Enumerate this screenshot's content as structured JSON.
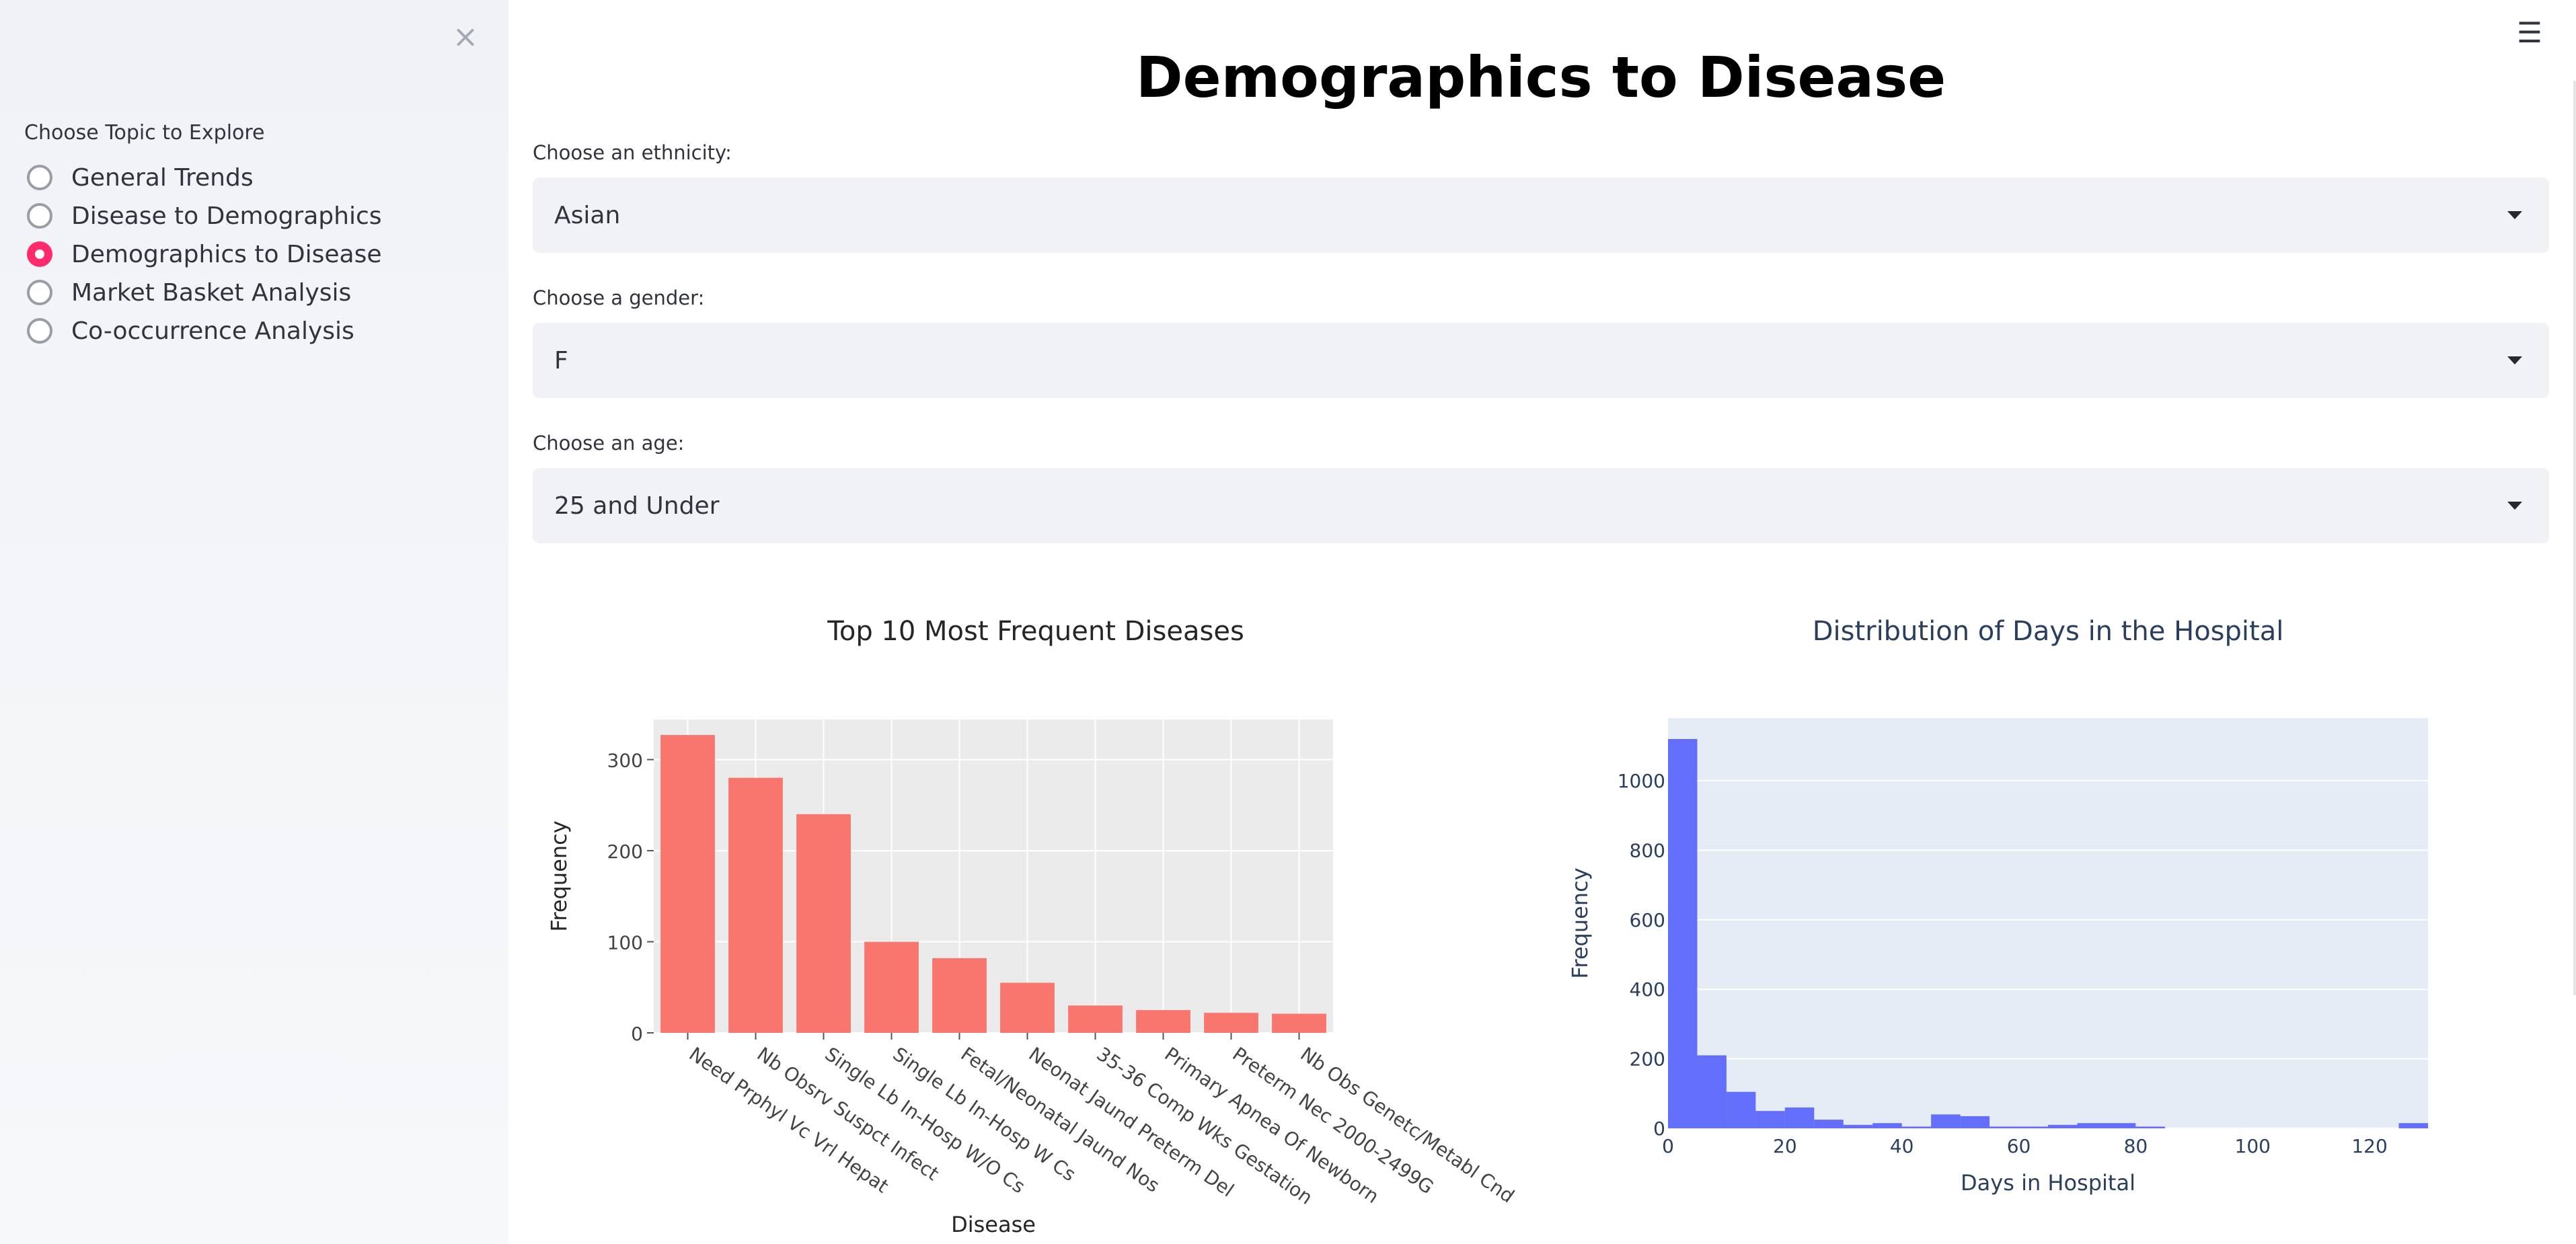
{
  "sidebar": {
    "close_icon": "close-icon",
    "topic_label": "Choose Topic to Explore",
    "options": [
      {
        "label": "General Trends",
        "selected": false
      },
      {
        "label": "Disease to Demographics",
        "selected": false
      },
      {
        "label": "Demographics to Disease",
        "selected": true
      },
      {
        "label": "Market Basket Analysis",
        "selected": false
      },
      {
        "label": "Co-occurrence Analysis",
        "selected": false
      }
    ],
    "accent_color": "#ff2b6b"
  },
  "header": {
    "menu_icon": "hamburger-menu-icon",
    "title": "Demographics to Disease"
  },
  "filters": {
    "ethnicity": {
      "label": "Choose an ethnicity:",
      "value": "Asian"
    },
    "gender": {
      "label": "Choose a gender:",
      "value": "F"
    },
    "age": {
      "label": "Choose an age:",
      "value": "25 and Under"
    }
  },
  "chart_data": [
    {
      "type": "bar",
      "title": "Top 10 Most Frequent Diseases",
      "xlabel": "Disease",
      "ylabel": "Frequency",
      "categories": [
        "Need Prphyl Vc Vrl Hepat",
        "Nb Obsrv Suspct Infect",
        "Single Lb In-Hosp W/O Cs",
        "Single Lb In-Hosp W Cs",
        "Fetal/Neonatal Jaund Nos",
        "Neonat Jaund Preterm Del",
        "35-36 Comp Wks Gestation",
        "Primary Apnea Of Newborn",
        "Preterm Nec 2000-2499G",
        "Nb Obs Genetc/Metabl Cnd"
      ],
      "values": [
        327,
        280,
        240,
        100,
        82,
        55,
        30,
        25,
        22,
        21
      ],
      "yticks": [
        0,
        100,
        200,
        300
      ],
      "ylim": [
        0,
        344
      ],
      "color": "#f8766d",
      "background": "#ebebeb",
      "grid": true
    },
    {
      "type": "bar",
      "title": "Distribution of Days in the Hospital",
      "xlabel": "Days in Hospital",
      "ylabel": "Frequency",
      "bin_width": 5,
      "bins_start": [
        0,
        5,
        10,
        15,
        20,
        25,
        30,
        35,
        40,
        45,
        50,
        55,
        60,
        65,
        70,
        75,
        80,
        85,
        90,
        95,
        100,
        105,
        110,
        115,
        120,
        125
      ],
      "values": [
        1120,
        210,
        105,
        50,
        60,
        25,
        10,
        15,
        5,
        40,
        35,
        5,
        5,
        10,
        15,
        15,
        5,
        0,
        0,
        0,
        0,
        0,
        0,
        0,
        0,
        15
      ],
      "xticks": [
        0,
        20,
        40,
        60,
        80,
        100,
        120
      ],
      "yticks": [
        0,
        200,
        400,
        600,
        800,
        1000
      ],
      "xlim": [
        0,
        130
      ],
      "ylim": [
        0,
        1180
      ],
      "color": "#636efa",
      "background": "#e5ecf6",
      "grid": true
    }
  ]
}
